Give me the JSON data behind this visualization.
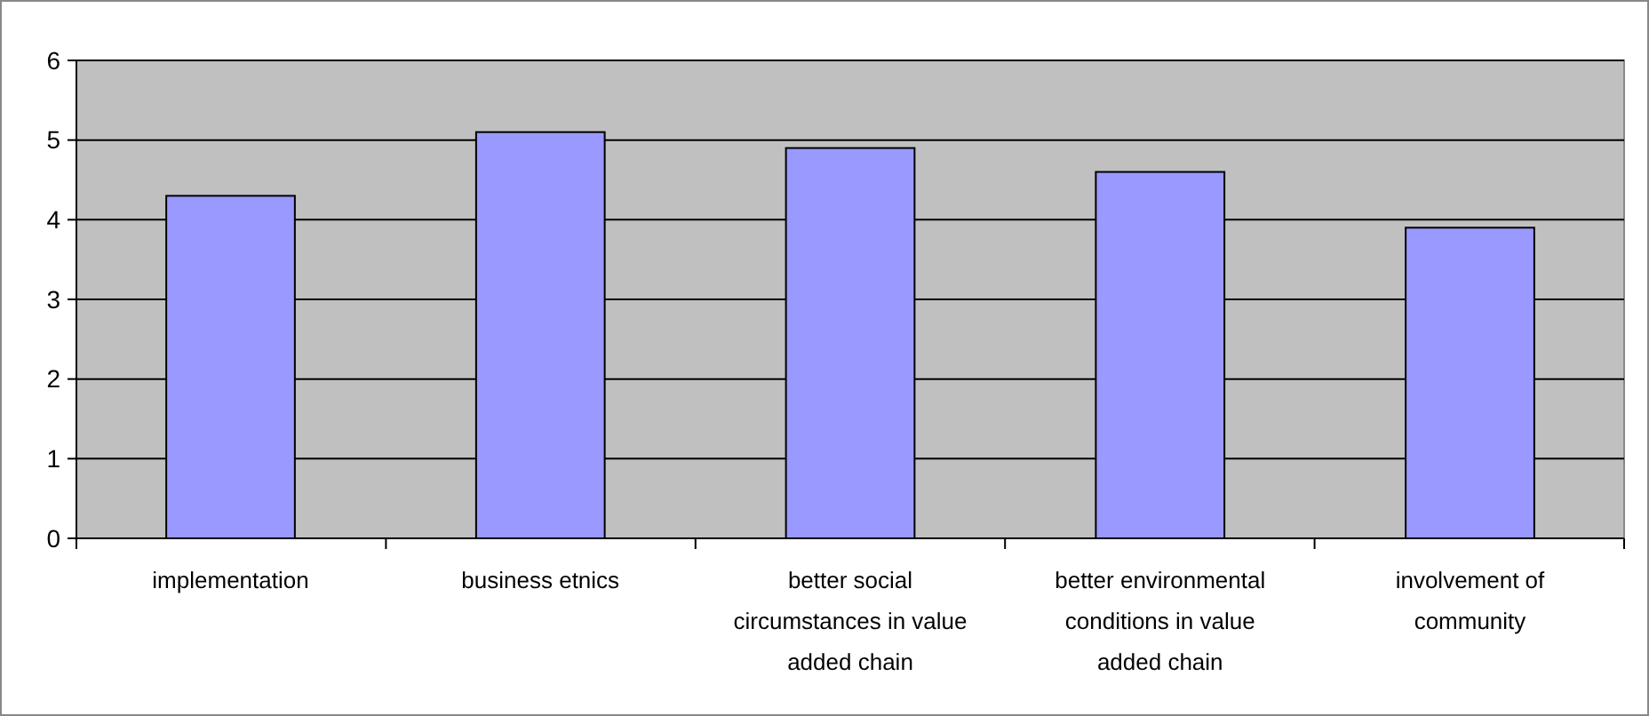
{
  "chart_data": {
    "type": "bar",
    "categories": [
      "implementation",
      "business etnics",
      "better social circumstances in value added chain",
      "better environmental conditions in value added chain",
      "involvement of community"
    ],
    "values": [
      4.3,
      5.1,
      4.9,
      4.6,
      3.9
    ],
    "color": "#9999ff",
    "ylim": [
      0,
      6
    ],
    "yticks": [
      0,
      1,
      2,
      3,
      4,
      5,
      6
    ],
    "grid": "y"
  }
}
